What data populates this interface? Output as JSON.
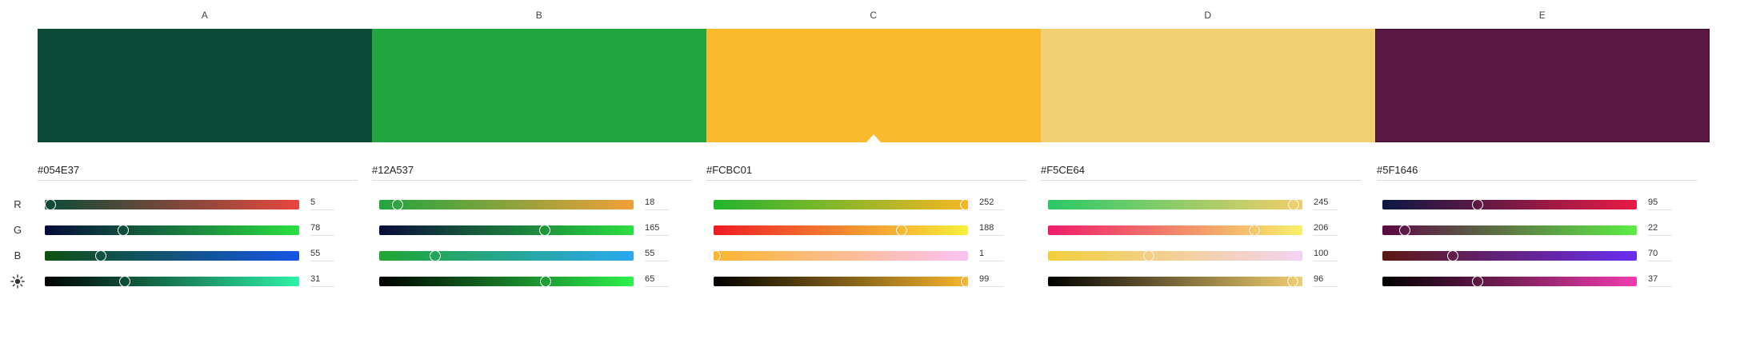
{
  "columns": [
    {
      "label": "A",
      "hex": "#054E37",
      "color": "#0B4A37",
      "r": 5,
      "g": 78,
      "b": 55,
      "brightness": 31,
      "gradients": {
        "r": [
          "#0B4A37",
          "#E8473F"
        ],
        "g": [
          "#050A3A",
          "#2BE040"
        ],
        "b": [
          "#0E5210",
          "#1655E6"
        ],
        "brightness": [
          "#000000",
          "#2EF2A8"
        ]
      }
    },
    {
      "label": "B",
      "hex": "#12A537",
      "color": "#21A53F",
      "r": 18,
      "g": 165,
      "b": 55,
      "brightness": 65,
      "gradients": {
        "r": [
          "#21A53F",
          "#F2A03A"
        ],
        "g": [
          "#0A0A3A",
          "#2BE040"
        ],
        "b": [
          "#21A532",
          "#2BA8F2"
        ],
        "brightness": [
          "#000000",
          "#2EF24C"
        ]
      }
    },
    {
      "label": "C",
      "hex": "#FCBC01",
      "color": "#FBBA2E",
      "r": 252,
      "g": 188,
      "b": 1,
      "brightness": 99,
      "gradients": {
        "r": [
          "#21B52E",
          "#F5B725"
        ],
        "g": [
          "#EE1B24",
          "#F7F03A"
        ],
        "b": [
          "#FBB62E",
          "#FBC2F2"
        ],
        "brightness": [
          "#000000",
          "#F7B62E"
        ]
      }
    },
    {
      "label": "D",
      "hex": "#F5CE64",
      "color": "#F2CF70",
      "r": 245,
      "g": 206,
      "b": 100,
      "brightness": 96,
      "gradients": {
        "r": [
          "#2AC968",
          "#F2CF6A"
        ],
        "g": [
          "#EE1B6A",
          "#F7F06A"
        ],
        "b": [
          "#F2CF3A",
          "#F5D2F2"
        ],
        "brightness": [
          "#000000",
          "#F2CF70"
        ]
      }
    },
    {
      "label": "E",
      "hex": "#5F1646",
      "color": "#5C1844",
      "r": 95,
      "g": 22,
      "b": 70,
      "brightness": 37,
      "gradients": {
        "r": [
          "#0B1744",
          "#E81B44"
        ],
        "g": [
          "#5C0644",
          "#5CEF44"
        ],
        "b": [
          "#5C1810",
          "#6A2EF2"
        ],
        "brightness": [
          "#000000",
          "#F23CB0"
        ]
      }
    }
  ],
  "selected_column": "C",
  "row_labels": {
    "r": "R",
    "g": "G",
    "b": "B"
  },
  "brightness_icon": "sun-icon"
}
